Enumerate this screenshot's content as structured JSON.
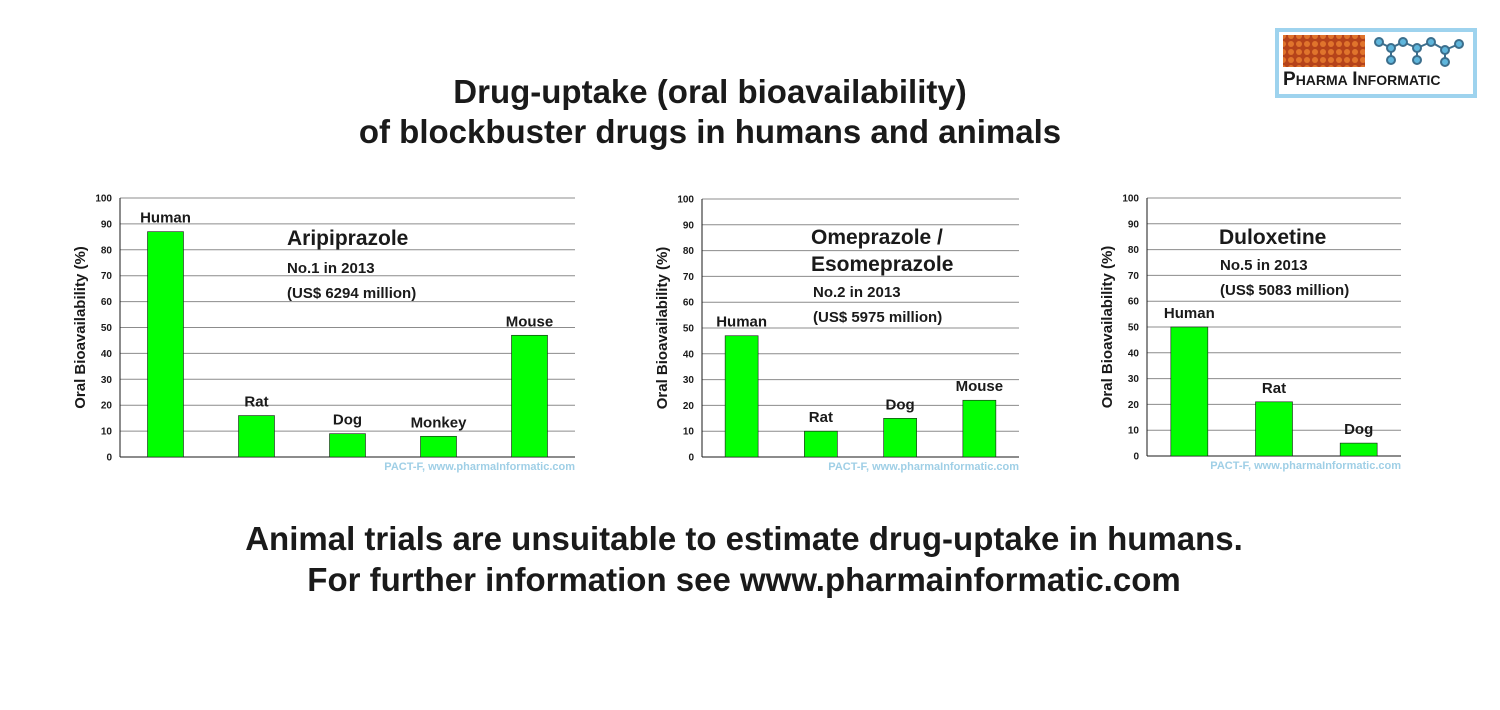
{
  "header": {
    "title_line1": "Drug-uptake (oral bioavailability)",
    "title_line2": "of blockbuster drugs in humans and animals"
  },
  "logo": {
    "word1_initial": "P",
    "word1_rest": "HARMA",
    "word2_initial": "I",
    "word2_rest": "NFORMATIC"
  },
  "footer": {
    "line1": "Animal trials are unsuitable to estimate drug-uptake in humans.",
    "line2": "For further information see www.pharmainformatic.com"
  },
  "colors": {
    "bar": "#00ff00",
    "bar_stroke": "#1a1a1a",
    "grid": "#8c8c8c",
    "credit": "#9fcfe6",
    "logo_frame": "#9ed3ee"
  },
  "chart_data": [
    {
      "type": "bar",
      "title": "Aripiprazole",
      "notes": [
        "No.1 in 2013",
        "(US$ 6294 million)"
      ],
      "categories": [
        "Human",
        "Rat",
        "Dog",
        "Monkey",
        "Mouse"
      ],
      "values": [
        87,
        16,
        9,
        8,
        47
      ],
      "ylabel": "Oral Bioavailability (%)",
      "ylim": [
        0,
        100
      ],
      "yticks": [
        "0",
        "10",
        "20",
        "30",
        "40",
        "50",
        "60",
        "70",
        "80",
        "90",
        "100"
      ],
      "grid": true,
      "credit": "PACT-F, www.pharmaInformatic.com"
    },
    {
      "type": "bar",
      "title": "Omeprazole /",
      "title_line2": "Esomeprazole",
      "notes": [
        "No.2 in 2013",
        "(US$ 5975 million)"
      ],
      "categories": [
        "Human",
        "Rat",
        "Dog",
        "Mouse"
      ],
      "values": [
        47,
        10,
        15,
        22
      ],
      "ylabel": "Oral Bioavailability (%)",
      "ylim": [
        0,
        100
      ],
      "yticks": [
        "0",
        "10",
        "20",
        "30",
        "40",
        "50",
        "60",
        "70",
        "80",
        "90",
        "100"
      ],
      "grid": true,
      "credit": "PACT-F, www.pharmaInformatic.com"
    },
    {
      "type": "bar",
      "title": "Duloxetine",
      "notes": [
        "No.5 in 2013",
        "(US$ 5083 million)"
      ],
      "categories": [
        "Human",
        "Rat",
        "Dog"
      ],
      "values": [
        50,
        21,
        5
      ],
      "ylabel": "Oral Bioavailability (%)",
      "ylim": [
        0,
        100
      ],
      "yticks": [
        "0",
        "10",
        "20",
        "30",
        "40",
        "50",
        "60",
        "70",
        "80",
        "90",
        "100"
      ],
      "grid": true,
      "credit": "PACT-F, www.pharmaInformatic.com"
    }
  ]
}
